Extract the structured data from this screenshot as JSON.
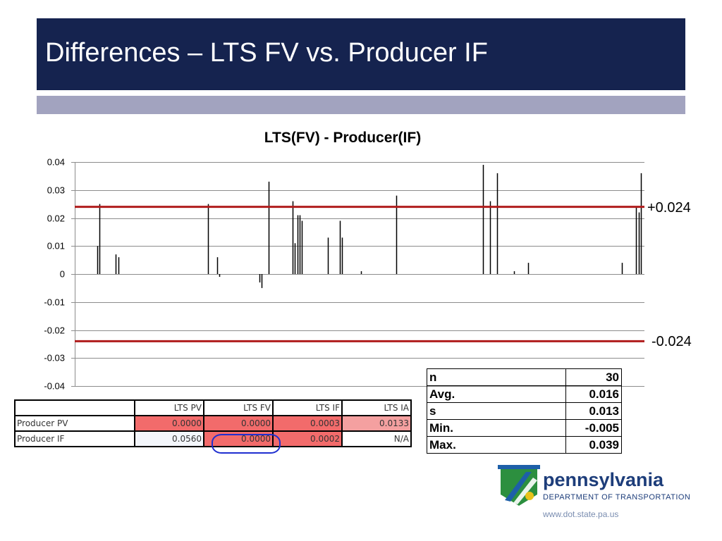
{
  "slide": {
    "title": "Differences – LTS FV vs. Producer IF"
  },
  "colors": {
    "title_bar": "#15234f",
    "sub_bar": "#a2a3bf",
    "threshold_line": "#b01c1c",
    "cell_red": "#f26b6b",
    "cell_pink": "#f4a0a0",
    "circle": "#1f2fd0"
  },
  "chart_data": {
    "type": "bar",
    "title": "LTS(FV) - Producer(IF)",
    "xlabel": "",
    "ylabel": "",
    "ylim": [
      -0.04,
      0.04
    ],
    "yticks": [
      "0.04",
      "0.03",
      "0.02",
      "0.01",
      "0",
      "-0.01",
      "-0.02",
      "-0.03",
      "-0.04"
    ],
    "grid": true,
    "values": [
      0,
      0,
      0,
      0,
      0,
      0,
      0,
      0,
      0,
      0.01,
      0.025,
      0,
      0,
      0,
      0,
      0,
      0,
      0.007,
      0.006,
      0,
      0,
      0,
      0,
      0,
      0,
      0,
      0,
      0,
      0,
      0,
      0,
      0,
      0,
      0,
      0,
      0,
      0,
      0,
      0,
      0,
      0,
      0,
      0,
      0,
      0,
      0,
      0,
      0,
      0,
      0,
      0,
      0,
      0,
      0,
      0,
      0,
      0.025,
      0,
      0,
      0,
      0.006,
      -0.001,
      0,
      0,
      0,
      0,
      0,
      0,
      0,
      0,
      0,
      0,
      0,
      0,
      0,
      0,
      0,
      0,
      -0.003,
      -0.005,
      0,
      0,
      0.033,
      0,
      0,
      0,
      0,
      0,
      0,
      0,
      0,
      0,
      0.026,
      0.011,
      0.021,
      0.021,
      0.019,
      0,
      0,
      0,
      0,
      0,
      0,
      0,
      0,
      0,
      0,
      0.013,
      0,
      0,
      0,
      0,
      0.019,
      0.013,
      0,
      0,
      0,
      0,
      0,
      0,
      0,
      0.001,
      0,
      0,
      0,
      0,
      0,
      0,
      0,
      0,
      0,
      0,
      0,
      0,
      0,
      0,
      0.028,
      0,
      0,
      0,
      0,
      0,
      0,
      0,
      0,
      0,
      0,
      0,
      0,
      0,
      0,
      0,
      0,
      0,
      0,
      0,
      0,
      0,
      0,
      0,
      0,
      0,
      0,
      0,
      0,
      0,
      0,
      0,
      0,
      0,
      0,
      0,
      0,
      0.039,
      0,
      0,
      0.026,
      0,
      0,
      0.036,
      0,
      0,
      0,
      0,
      0,
      0,
      0.001,
      0,
      0,
      0,
      0,
      0,
      0.004,
      0,
      0,
      0,
      0,
      0,
      0,
      0,
      0,
      0,
      0,
      0,
      0,
      0,
      0,
      0,
      0,
      0,
      0,
      0,
      0,
      0,
      0,
      0,
      0,
      0,
      0,
      0,
      0,
      0,
      0,
      0,
      0,
      0,
      0,
      0,
      0,
      0,
      0,
      0,
      0.004,
      0,
      0,
      0,
      0,
      0,
      0.024,
      0.022,
      0.036,
      0
    ],
    "thresholds": [
      {
        "value": 0.024,
        "label": "+0.024"
      },
      {
        "value": -0.024,
        "label": "-0.024"
      }
    ]
  },
  "comparison_table": {
    "columns": [
      "",
      "LTS PV",
      "LTS FV",
      "LTS IF",
      "LTS IA"
    ],
    "rows": [
      {
        "label": "Producer PV",
        "values": [
          "0.0000",
          "0.0000",
          "0.0003",
          "0.0133"
        ]
      },
      {
        "label": "Producer IF",
        "values": [
          "0.0560",
          "0.0000",
          "0.0002",
          "N/A"
        ]
      }
    ]
  },
  "stats_table": [
    {
      "key": "n",
      "value": "30"
    },
    {
      "key": "Avg.",
      "value": "0.016"
    },
    {
      "key": "s",
      "value": "0.013"
    },
    {
      "key": "Min.",
      "value": "-0.005"
    },
    {
      "key": "Max.",
      "value": "0.039"
    }
  ],
  "logo": {
    "name": "pennsylvania",
    "department": "DEPARTMENT OF TRANSPORTATION",
    "url": "www.dot.state.pa.us",
    "icon": "keystone-logo-icon"
  }
}
